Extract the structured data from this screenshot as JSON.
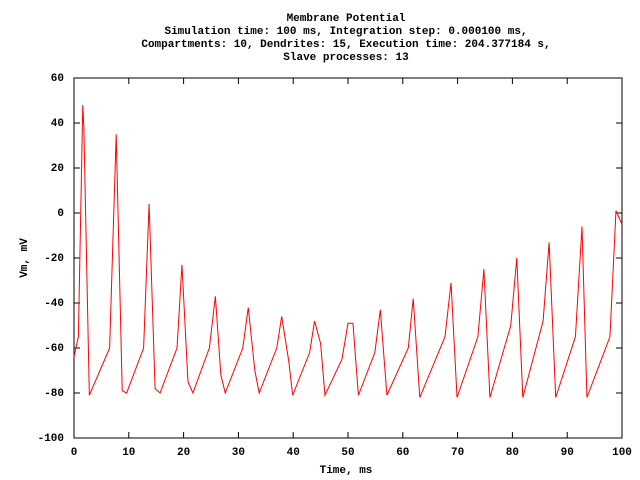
{
  "chart_data": {
    "type": "line",
    "title": "Membrane Potential",
    "subtitle": [
      "Simulation time: 100 ms, Integration step: 0.000100 ms,",
      "Compartments: 10, Dendrites: 15, Execution time: 204.377184 s,",
      "Slave processes: 13"
    ],
    "x_label": "Time, ms",
    "y_label": "Vm, mV",
    "color": "#ff0000",
    "x": [
      0,
      0.8,
      1.6,
      1.8,
      2.8,
      6.5,
      7.7,
      8.8,
      9.6,
      12.7,
      13.7,
      14.8,
      15.7,
      18.8,
      19.7,
      20.8,
      21.7,
      24.7,
      25.8,
      26.8,
      27.6,
      30.8,
      31.8,
      33.0,
      33.8,
      37.0,
      37.9,
      39.2,
      39.9,
      43.0,
      43.9,
      45.0,
      45.8,
      48.9,
      50.0,
      50.9,
      51.9,
      54.9,
      55.9,
      57.1,
      61.0,
      61.9,
      63.1,
      67.7,
      68.8,
      69.9,
      73.7,
      74.8,
      75.9,
      79.7,
      80.8,
      81.9,
      85.6,
      86.7,
      87.9,
      91.5,
      92.7,
      93.6,
      97.8,
      98.9,
      100
    ],
    "values": [
      -64,
      -55,
      48,
      38,
      -81,
      -60,
      35,
      -79,
      -80,
      -60,
      4,
      -78,
      -80,
      -60,
      -23,
      -75,
      -80,
      -60,
      -37,
      -72,
      -80,
      -60,
      -42,
      -70,
      -80,
      -60,
      -46,
      -66,
      -81,
      -62,
      -48,
      -58,
      -81,
      -65,
      -49,
      -49,
      -81,
      -62,
      -43,
      -81,
      -60,
      -38,
      -82,
      -55,
      -31,
      -82,
      -55,
      -25,
      -82,
      -50,
      -20,
      -82,
      -48,
      -13,
      -82,
      -55,
      -6,
      -82,
      -55,
      1,
      -5
    ],
    "xlim": [
      0,
      100
    ],
    "xticks": [
      0,
      10,
      20,
      30,
      40,
      50,
      60,
      70,
      80,
      90,
      100
    ],
    "ylim": [
      -100,
      60
    ],
    "yticks": [
      -100,
      -80,
      -60,
      -40,
      -20,
      0,
      20,
      40,
      60
    ]
  }
}
